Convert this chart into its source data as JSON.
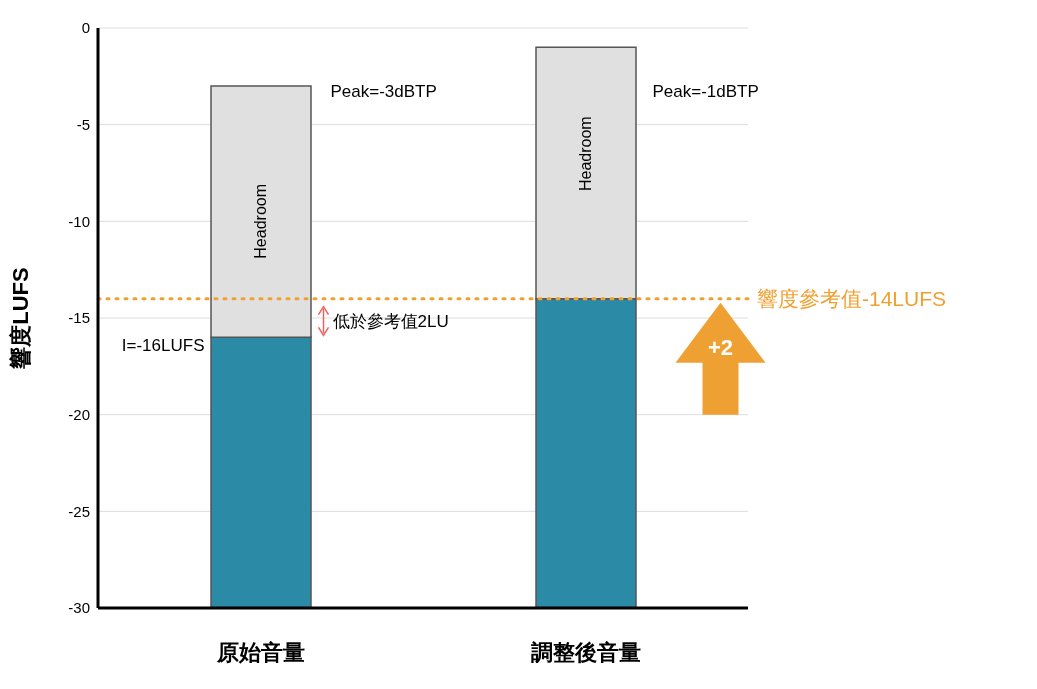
{
  "chart_data": {
    "type": "bar",
    "ylabel": "響度LUFS",
    "categories": [
      "原始音量",
      "調整後音量"
    ],
    "series": [
      {
        "color": "#2b8aa6",
        "base": [
          -30,
          -30
        ],
        "values": [
          14,
          16
        ]
      },
      {
        "color": "#e0e0e0",
        "base": [
          -16,
          -14
        ],
        "values": [
          13,
          13
        ]
      }
    ],
    "ylim": [
      -30,
      0
    ],
    "yticks": [
      -30,
      -25,
      -20,
      -15,
      -10,
      -5,
      0
    ],
    "grid": "y",
    "legend": false,
    "ref_lines": [
      {
        "axis": "y",
        "value": -14,
        "label": "響度參考值-14LUFS",
        "color": "#f0a030",
        "line_style": "dotted"
      }
    ],
    "annotations": [
      "Peak=-3dBTP",
      "Peak=-1dBTP",
      "Headroom",
      "Headroom",
      "I=-16LUFS",
      "低於參考值2LU",
      "+2"
    ]
  }
}
